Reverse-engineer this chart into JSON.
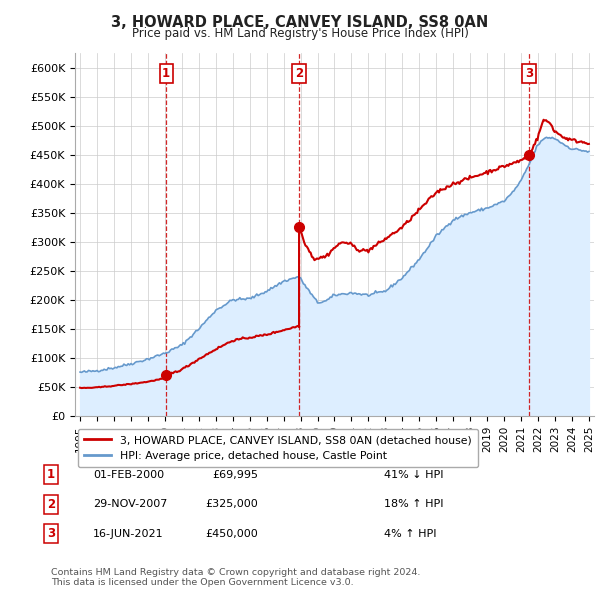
{
  "title": "3, HOWARD PLACE, CANVEY ISLAND, SS8 0AN",
  "subtitle": "Price paid vs. HM Land Registry's House Price Index (HPI)",
  "ylim": [
    0,
    620000
  ],
  "yticks": [
    0,
    50000,
    100000,
    150000,
    200000,
    250000,
    300000,
    350000,
    400000,
    450000,
    500000,
    550000,
    600000
  ],
  "ytick_labels": [
    "£0",
    "£50K",
    "£100K",
    "£150K",
    "£200K",
    "£250K",
    "£300K",
    "£350K",
    "£400K",
    "£450K",
    "£500K",
    "£550K",
    "£600K"
  ],
  "sale_color": "#cc0000",
  "hpi_color": "#6699cc",
  "hpi_fill_color": "#ddeeff",
  "vline_color": "#cc0000",
  "grid_color": "#cccccc",
  "background_color": "#ffffff",
  "sale_marker_years": [
    2000.08,
    2007.91,
    2021.46
  ],
  "sale_marker_prices": [
    69995,
    325000,
    450000
  ],
  "transactions": [
    {
      "num": 1,
      "date_str": "01-FEB-2000",
      "price": 69995,
      "year": 2000.08,
      "hpi_pct": "41% ↓ HPI"
    },
    {
      "num": 2,
      "date_str": "29-NOV-2007",
      "price": 325000,
      "year": 2007.91,
      "hpi_pct": "18% ↑ HPI"
    },
    {
      "num": 3,
      "date_str": "16-JUN-2021",
      "price": 450000,
      "year": 2021.46,
      "hpi_pct": "4% ↑ HPI"
    }
  ],
  "legend_label_sale": "3, HOWARD PLACE, CANVEY ISLAND, SS8 0AN (detached house)",
  "legend_label_hpi": "HPI: Average price, detached house, Castle Point",
  "footer": "Contains HM Land Registry data © Crown copyright and database right 2024.\nThis data is licensed under the Open Government Licence v3.0.",
  "table_rows": [
    [
      "1",
      "01-FEB-2000",
      "£69,995",
      "41% ↓ HPI"
    ],
    [
      "2",
      "29-NOV-2007",
      "£325,000",
      "18% ↑ HPI"
    ],
    [
      "3",
      "16-JUN-2021",
      "£450,000",
      "4% ↑ HPI"
    ]
  ]
}
